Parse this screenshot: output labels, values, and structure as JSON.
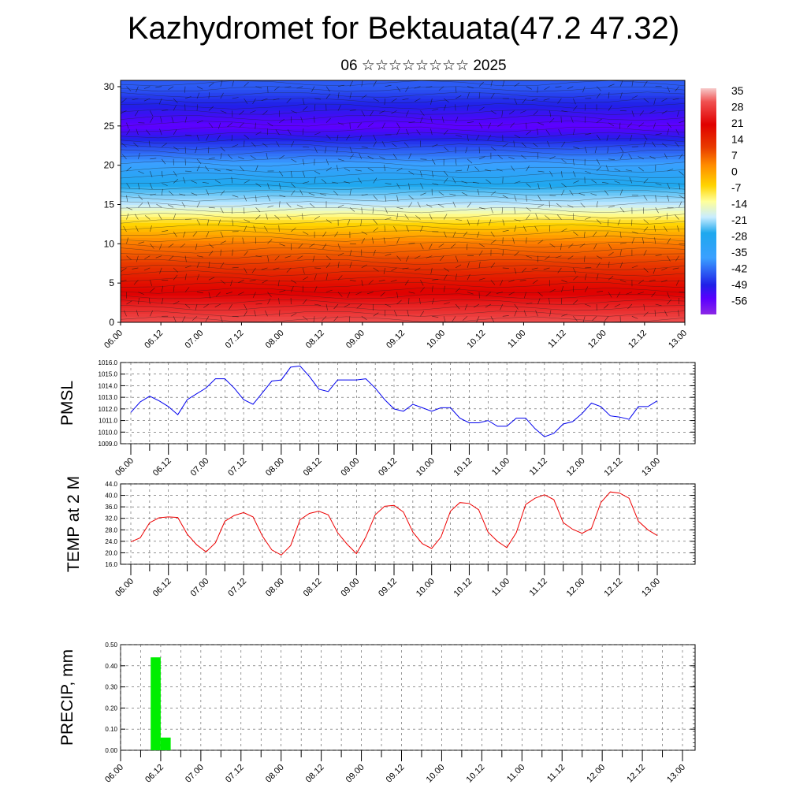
{
  "header": {
    "title": "Kazhydromet for Bektauata(47.2 47.32)",
    "subtitle": "06 ☆☆☆☆☆☆☆☆ 2025"
  },
  "chart_data": [
    {
      "type": "heatmap",
      "description_of_axes": "time-height cross section",
      "x_ticks": [
        "06.00",
        "06.12",
        "07.00",
        "07.12",
        "08.00",
        "08.12",
        "09.00",
        "09.12",
        "10.00",
        "10.12",
        "11.00",
        "11.12",
        "12.00",
        "12.12",
        "13.00"
      ],
      "y_ticks": [
        0,
        5,
        10,
        15,
        20,
        25,
        30
      ],
      "ylim": [
        0,
        30.8
      ],
      "colorbar_labels": [
        35,
        28,
        21,
        14,
        7,
        0,
        -7,
        -14,
        -21,
        -28,
        -35,
        -42,
        -49,
        -56
      ],
      "temperature_profile": [
        {
          "height": 0,
          "value": 30
        },
        {
          "height": 5,
          "value": 22
        },
        {
          "height": 10,
          "value": 10
        },
        {
          "height": 13,
          "value": -2
        },
        {
          "height": 15,
          "value": -12
        },
        {
          "height": 17,
          "value": -20
        },
        {
          "height": 20,
          "value": -34
        },
        {
          "height": 23,
          "value": -46
        },
        {
          "height": 25,
          "value": -57
        },
        {
          "height": 27,
          "value": -50
        },
        {
          "height": 30,
          "value": -42
        }
      ]
    },
    {
      "type": "line",
      "ylabel": "PMSL",
      "ylim": [
        1009.0,
        1016.0
      ],
      "y_ticks": [
        "1009.0",
        "1010.0",
        "1011.0",
        "1012.0",
        "1013.0",
        "1014.0",
        "1015.0",
        "1016.0"
      ],
      "x_ticks": [
        "06.00",
        "06.12",
        "07.00",
        "07.12",
        "08.00",
        "08.12",
        "09.00",
        "09.12",
        "10.00",
        "10.12",
        "11.00",
        "11.12",
        "12.00",
        "12.12",
        "13.00"
      ],
      "color": "#0000ee",
      "x_hours": [
        0,
        3,
        6,
        9,
        12,
        15,
        18,
        21,
        24,
        27,
        30,
        33,
        36,
        39,
        42,
        45,
        48,
        51,
        54,
        57,
        60,
        63,
        66,
        69,
        72,
        75,
        78,
        81,
        84,
        87,
        90,
        93,
        96,
        99,
        102,
        105,
        108,
        111,
        114,
        117,
        120,
        123,
        126,
        129,
        132,
        135,
        138,
        141,
        144,
        147,
        150,
        153,
        156,
        159,
        162,
        165,
        168
      ],
      "values": [
        1011.7,
        1012.6,
        1013.1,
        1012.7,
        1012.2,
        1011.5,
        1012.8,
        1013.3,
        1013.8,
        1014.6,
        1014.6,
        1013.8,
        1012.8,
        1012.4,
        1013.4,
        1014.4,
        1014.5,
        1015.6,
        1015.7,
        1014.8,
        1013.7,
        1013.5,
        1014.5,
        1014.5,
        1014.5,
        1014.6,
        1013.8,
        1012.8,
        1012.0,
        1011.8,
        1012.4,
        1012.1,
        1011.8,
        1012.1,
        1012.1,
        1011.2,
        1010.8,
        1010.8,
        1011.0,
        1010.5,
        1010.5,
        1011.2,
        1011.2,
        1010.3,
        1009.6,
        1009.9,
        1010.7,
        1010.9,
        1011.6,
        1012.5,
        1012.2,
        1011.4,
        1011.3,
        1011.1,
        1012.2,
        1012.2,
        1012.7
      ]
    },
    {
      "type": "line",
      "ylabel": "TEMP at 2 M",
      "ylim": [
        16.0,
        44.0
      ],
      "y_ticks": [
        "16.0",
        "20.0",
        "24.0",
        "28.0",
        "32.0",
        "36.0",
        "40.0",
        "44.0"
      ],
      "x_ticks": [
        "06.00",
        "06.12",
        "07.00",
        "07.12",
        "08.00",
        "08.12",
        "09.00",
        "09.12",
        "10.00",
        "10.12",
        "11.00",
        "11.12",
        "12.00",
        "12.12",
        "13.00"
      ],
      "color": "#ee0000",
      "x_hours": [
        0,
        3,
        6,
        9,
        12,
        15,
        18,
        21,
        24,
        27,
        30,
        33,
        36,
        39,
        42,
        45,
        48,
        51,
        54,
        57,
        60,
        63,
        66,
        69,
        72,
        75,
        78,
        81,
        84,
        87,
        90,
        93,
        96,
        99,
        102,
        105,
        108,
        111,
        114,
        117,
        120,
        123,
        126,
        129,
        132,
        135,
        138,
        141,
        144,
        147,
        150,
        153,
        156,
        159,
        162,
        165,
        168
      ],
      "values": [
        23.8,
        25.2,
        30.5,
        32.2,
        32.5,
        32.3,
        26.5,
        22.8,
        20.3,
        23.5,
        31.0,
        33.0,
        34.0,
        32.5,
        25.8,
        21.0,
        19.2,
        22.5,
        31.5,
        33.7,
        34.5,
        33.2,
        27.0,
        23.0,
        19.7,
        25.5,
        33.2,
        36.2,
        36.5,
        34.2,
        27.2,
        23.2,
        21.5,
        25.5,
        34.5,
        37.5,
        37.2,
        35.0,
        27.2,
        24.0,
        21.8,
        27.0,
        36.8,
        39.0,
        40.2,
        38.5,
        30.5,
        28.2,
        26.8,
        28.5,
        37.5,
        41.2,
        40.8,
        39.0,
        31.0,
        28.0,
        26.0
      ]
    },
    {
      "type": "bar",
      "ylabel": "PRECIP, mm",
      "ylim": [
        0.0,
        0.5
      ],
      "y_ticks": [
        "0.00",
        "0.10",
        "0.20",
        "0.30",
        "0.40",
        "0.50"
      ],
      "x_ticks": [
        "06.00",
        "06.12",
        "07.00",
        "07.12",
        "08.00",
        "08.12",
        "09.00",
        "09.12",
        "10.00",
        "10.12",
        "11.00",
        "11.12",
        "12.00",
        "12.12",
        "13.00"
      ],
      "color": "#00ee00",
      "bars": [
        {
          "start_hour": 9,
          "end_hour": 12,
          "value": 0.44
        },
        {
          "start_hour": 12,
          "end_hour": 15,
          "value": 0.06
        }
      ]
    }
  ]
}
